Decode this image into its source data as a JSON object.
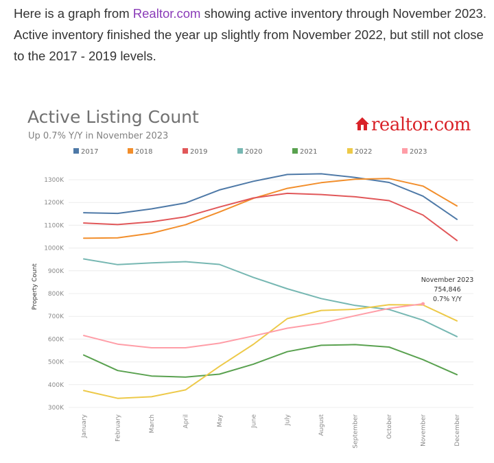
{
  "intro": {
    "before_link": "Here is a graph from ",
    "link_text": "Realtor.com",
    "after_link": " showing active inventory through November 2023. Active inventory finished the year up slightly from November 2022, but still not close to the 2017 - 2019 levels."
  },
  "logo": {
    "text": "realtor.com",
    "icon": "house-icon",
    "color": "#d92228"
  },
  "chart_data": {
    "type": "line",
    "title": "Active Listing Count",
    "subtitle": "Up 0.7% Y/Y in November 2023",
    "ylabel": "Property Count",
    "xlabel": "",
    "categories": [
      "January",
      "February",
      "March",
      "April",
      "May",
      "June",
      "July",
      "August",
      "September",
      "October",
      "November",
      "December"
    ],
    "ylim": [
      300000,
      1380000
    ],
    "yticks": [
      300000,
      400000,
      500000,
      600000,
      700000,
      800000,
      900000,
      1000000,
      1100000,
      1200000,
      1300000
    ],
    "ytick_labels": [
      "300K",
      "400K",
      "500K",
      "600K",
      "700K",
      "800K",
      "900K",
      "1000K",
      "1100K",
      "1200K",
      "1300K"
    ],
    "grid": true,
    "legend_position": "top",
    "series": [
      {
        "name": "2017",
        "color": "#4e79a7",
        "values": [
          1155000,
          1152000,
          1172000,
          1198000,
          1255000,
          1293000,
          1323000,
          1326000,
          1310000,
          1288000,
          1228000,
          1126000
        ]
      },
      {
        "name": "2018",
        "color": "#f28e2b",
        "values": [
          1043000,
          1045000,
          1065000,
          1102000,
          1158000,
          1218000,
          1262000,
          1287000,
          1302000,
          1305000,
          1272000,
          1185000
        ]
      },
      {
        "name": "2019",
        "color": "#e15759",
        "values": [
          1110000,
          1103000,
          1115000,
          1137000,
          1180000,
          1220000,
          1240000,
          1235000,
          1225000,
          1208000,
          1145000,
          1033000
        ]
      },
      {
        "name": "2020",
        "color": "#76b7b2",
        "values": [
          952000,
          927000,
          935000,
          940000,
          928000,
          871000,
          821000,
          778000,
          748000,
          730000,
          683000,
          611000
        ]
      },
      {
        "name": "2021",
        "color": "#59a14f",
        "values": [
          530000,
          462000,
          438000,
          433000,
          446000,
          490000,
          545000,
          573000,
          576000,
          565000,
          510000,
          444000
        ]
      },
      {
        "name": "2022",
        "color": "#edc948",
        "values": [
          374000,
          340000,
          347000,
          377000,
          480000,
          577000,
          690000,
          726000,
          731000,
          751000,
          750000,
          680000
        ]
      },
      {
        "name": "2023",
        "color": "#ff9da7",
        "values": [
          616000,
          578000,
          562000,
          562000,
          582000,
          614000,
          648000,
          670000,
          703000,
          735000,
          755000,
          null
        ]
      }
    ],
    "annotation": {
      "series": "2023",
      "category": "November",
      "lines": [
        "November 2023",
        "754,846",
        "0.7% Y/Y"
      ]
    }
  }
}
